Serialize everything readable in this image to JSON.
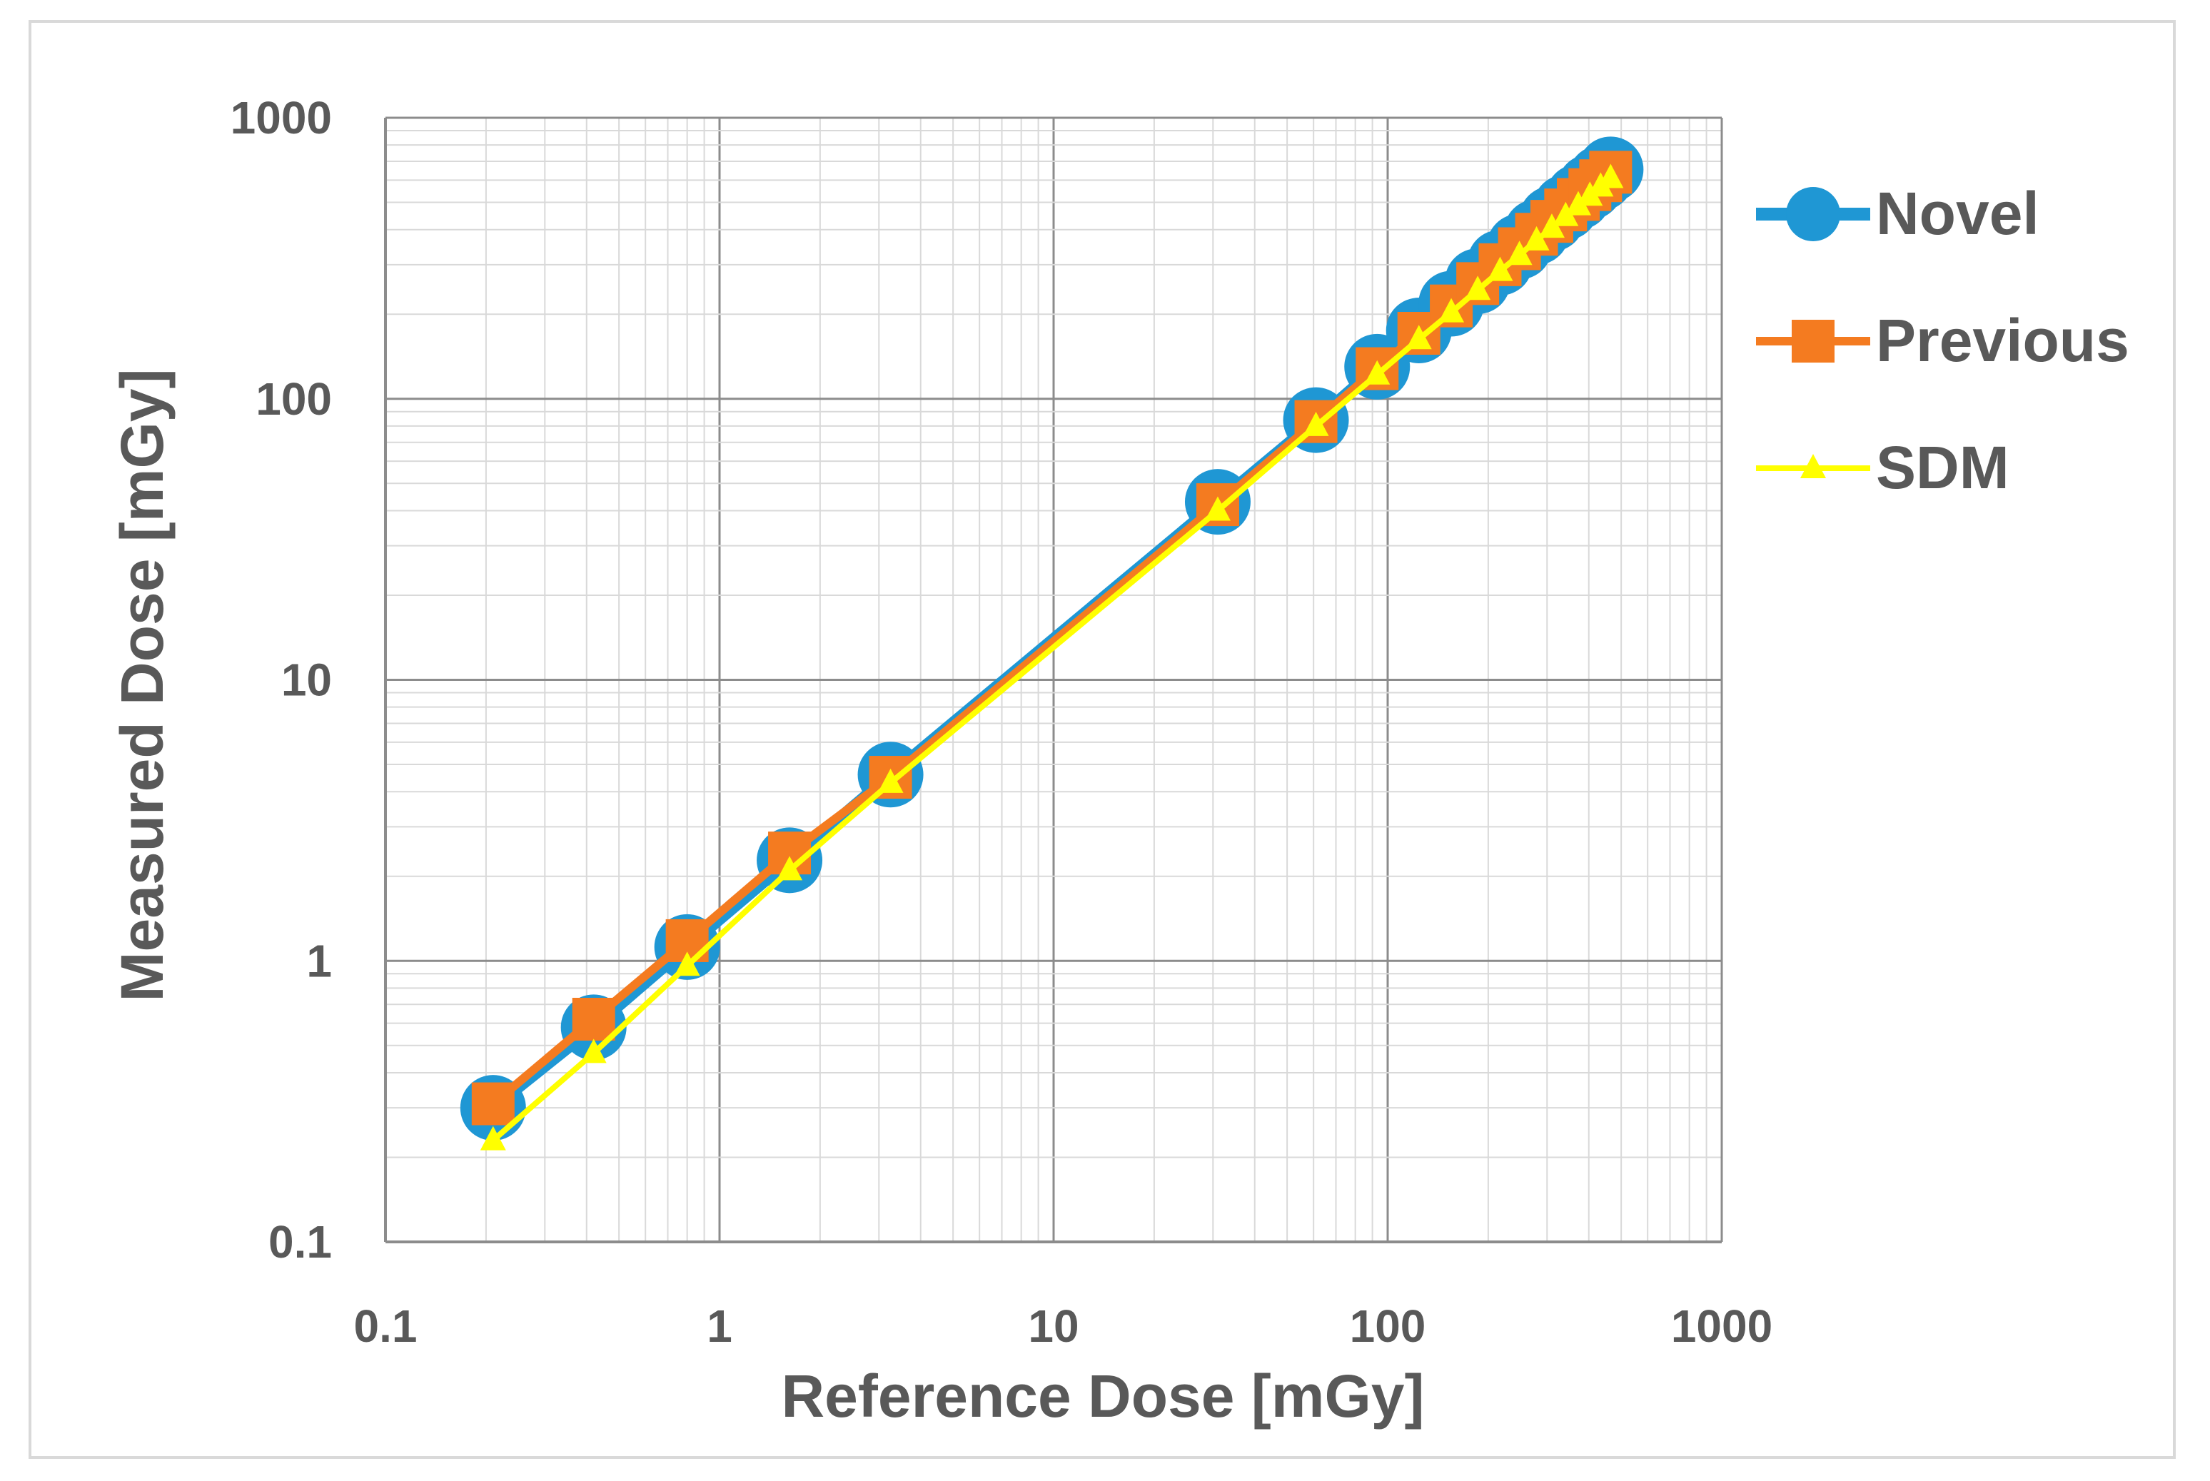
{
  "chart_data": {
    "type": "line",
    "xscale": "log",
    "yscale": "log",
    "xlabel": "Reference Dose [mGy]",
    "ylabel": "Measured Dose [mGy]",
    "xlim": [
      0.1,
      1000
    ],
    "ylim": [
      0.1,
      1000
    ],
    "x_ticks": [
      "0.1",
      "1",
      "10",
      "100",
      "1000"
    ],
    "y_ticks": [
      "0.1",
      "1",
      "10",
      "100",
      "1000"
    ],
    "grid": true,
    "legend_position": "right",
    "series": [
      {
        "name": "Novel",
        "color": "#1f97d4",
        "marker": "circle",
        "x": [
          0.21,
          0.42,
          0.8,
          1.62,
          3.25,
          31,
          61,
          93,
          124,
          155,
          186,
          217,
          248,
          279,
          310,
          341,
          372,
          403,
          434,
          465
        ],
        "y": [
          0.3,
          0.58,
          1.12,
          2.28,
          4.6,
          43,
          84,
          130,
          175,
          218,
          262,
          305,
          348,
          392,
          437,
          480,
          523,
          567,
          610,
          655
        ]
      },
      {
        "name": "Previous",
        "color": "#f47b20",
        "marker": "square",
        "x": [
          0.21,
          0.42,
          0.8,
          1.62,
          3.25,
          31,
          61,
          93,
          124,
          155,
          186,
          217,
          248,
          279,
          310,
          341,
          372,
          403,
          434,
          465
        ],
        "y": [
          0.31,
          0.62,
          1.18,
          2.42,
          4.5,
          42,
          83,
          128,
          171,
          214,
          257,
          300,
          342,
          385,
          428,
          470,
          512,
          555,
          597,
          640
        ]
      },
      {
        "name": "SDM",
        "color": "#ffff00",
        "marker": "triangle",
        "x": [
          0.21,
          0.42,
          0.8,
          1.62,
          3.25,
          31,
          61,
          93,
          124,
          155,
          186,
          217,
          248,
          279,
          310,
          341,
          372,
          403,
          434,
          465
        ],
        "y": [
          0.23,
          0.47,
          0.96,
          2.1,
          4.3,
          40,
          80,
          122,
          163,
          203,
          244,
          285,
          325,
          366,
          406,
          447,
          488,
          528,
          569,
          610
        ]
      }
    ]
  }
}
